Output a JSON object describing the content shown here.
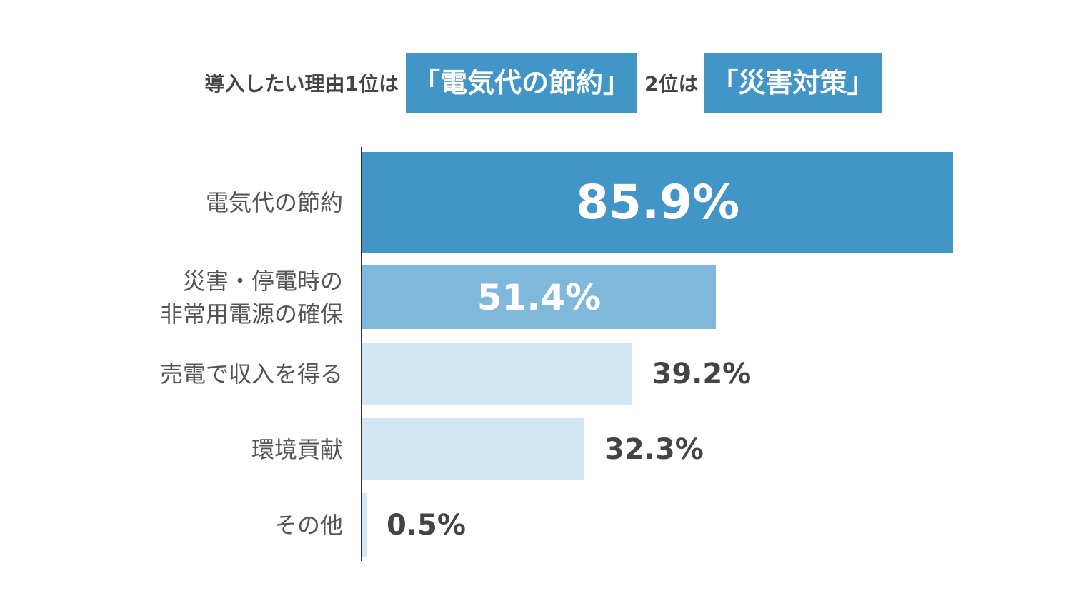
{
  "headline": {
    "prefix": "導入したい理由1位は",
    "first_highlight": "「電気代の節約」",
    "middle": "2位は",
    "second_highlight": "「災害対策」"
  },
  "colors": {
    "bar_dark": "#4296c7",
    "bar_mid": "#7fb8da",
    "bar_light": "#d3e7f3",
    "text_dark": "#444444",
    "text_white": "#ffffff"
  },
  "chart_data": {
    "type": "bar",
    "orientation": "horizontal",
    "categories": [
      "電気代の節約",
      "災害・停電時の\n非常用電源の確保",
      "売電で収入を得る",
      "環境貢献",
      "その他"
    ],
    "values": [
      85.9,
      51.4,
      39.2,
      32.3,
      0.5
    ],
    "value_labels": [
      "85.9%",
      "51.4%",
      "39.2%",
      "32.3%",
      "0.5%"
    ],
    "unit": "%",
    "xlim": [
      0,
      100
    ],
    "grid": false,
    "legend": "none"
  }
}
